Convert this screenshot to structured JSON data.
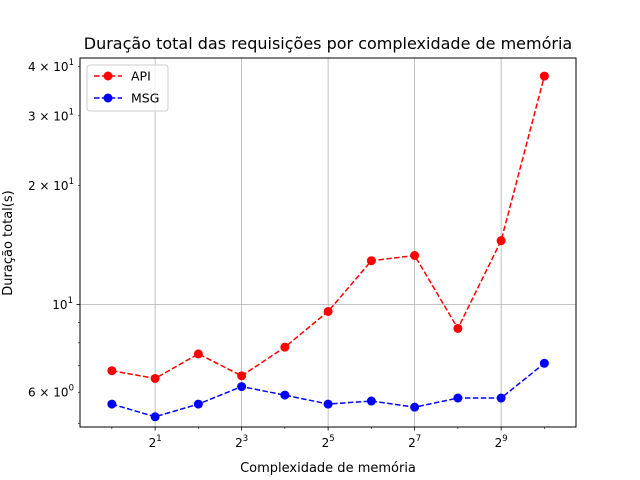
{
  "chart_data": {
    "type": "line",
    "title": "Duração total das requisições por complexidade de memória",
    "xlabel": "Complexidade de memória",
    "ylabel": "Duração total(s)",
    "x_scale": "log2",
    "y_scale": "log10",
    "x": [
      1,
      2,
      4,
      8,
      16,
      32,
      64,
      128,
      256,
      512,
      1024
    ],
    "xlim": [
      0.6,
      1700
    ],
    "ylim": [
      4.9,
      42
    ],
    "grid": true,
    "legend_position": "upper left",
    "x_ticks": [
      {
        "value": 2,
        "base": "2",
        "exp": "1"
      },
      {
        "value": 8,
        "base": "2",
        "exp": "3"
      },
      {
        "value": 32,
        "base": "2",
        "exp": "5"
      },
      {
        "value": 128,
        "base": "2",
        "exp": "7"
      },
      {
        "value": 512,
        "base": "2",
        "exp": "9"
      }
    ],
    "y_ticks_major": [
      {
        "value": 10,
        "base": "10",
        "exp": "1",
        "mantissa": ""
      }
    ],
    "y_ticks_minor_labeled": [
      {
        "value": 6,
        "mantissa": "6 × ",
        "base": "10",
        "exp": "0"
      },
      {
        "value": 20,
        "mantissa": "2 × ",
        "base": "10",
        "exp": "1"
      },
      {
        "value": 30,
        "mantissa": "3 × ",
        "base": "10",
        "exp": "1"
      },
      {
        "value": 40,
        "mantissa": "4 × ",
        "base": "10",
        "exp": "1"
      }
    ],
    "y_ticks_minor_unlabeled": [
      5,
      7,
      8,
      9
    ],
    "series": [
      {
        "name": "API",
        "color": "#ff0000",
        "values": [
          6.8,
          6.5,
          7.5,
          6.6,
          7.8,
          9.6,
          12.9,
          13.3,
          8.7,
          14.5,
          37.8
        ]
      },
      {
        "name": "MSG",
        "color": "#0000ff",
        "values": [
          5.6,
          5.2,
          5.6,
          6.2,
          5.9,
          5.6,
          5.7,
          5.5,
          5.8,
          5.8,
          7.1
        ]
      }
    ]
  }
}
